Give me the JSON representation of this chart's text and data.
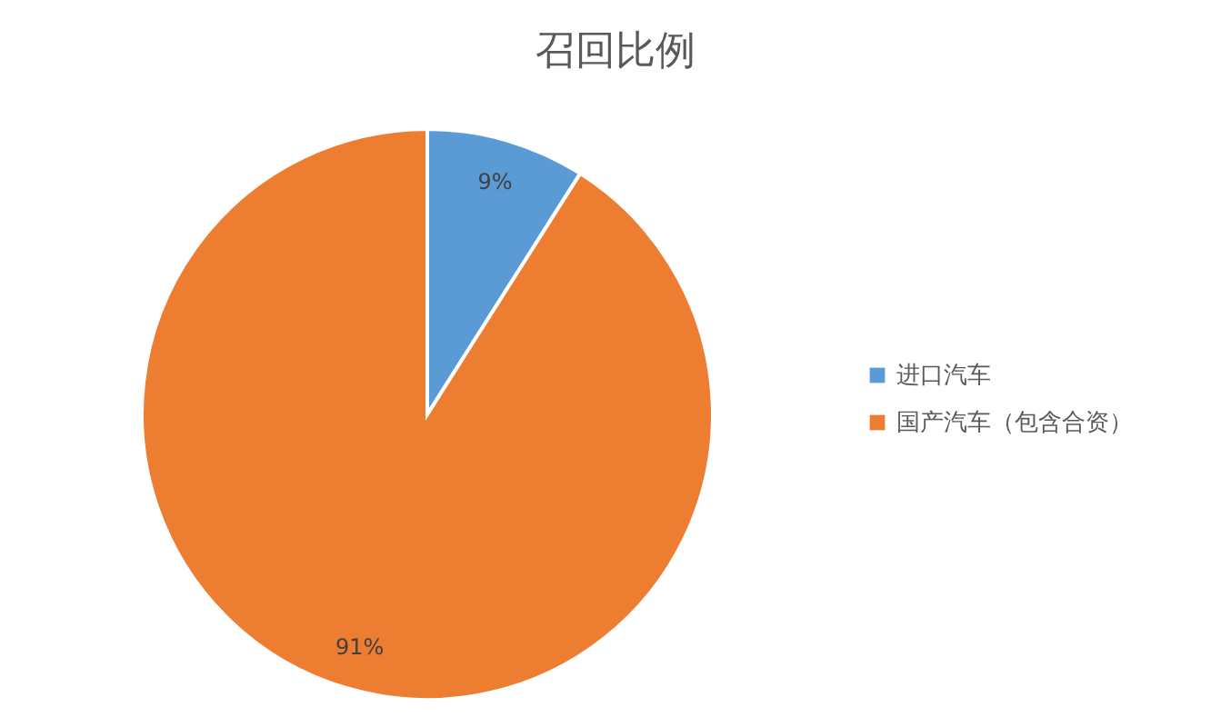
{
  "chart_data": {
    "type": "pie",
    "title": "召回比例",
    "categories": [
      "进口汽车",
      "国产汽车（包含合资）"
    ],
    "values": [
      9,
      91
    ],
    "colors": [
      "#5b9bd5",
      "#ed7d31"
    ],
    "value_labels": [
      "9%",
      "91%"
    ],
    "legend": "right"
  }
}
